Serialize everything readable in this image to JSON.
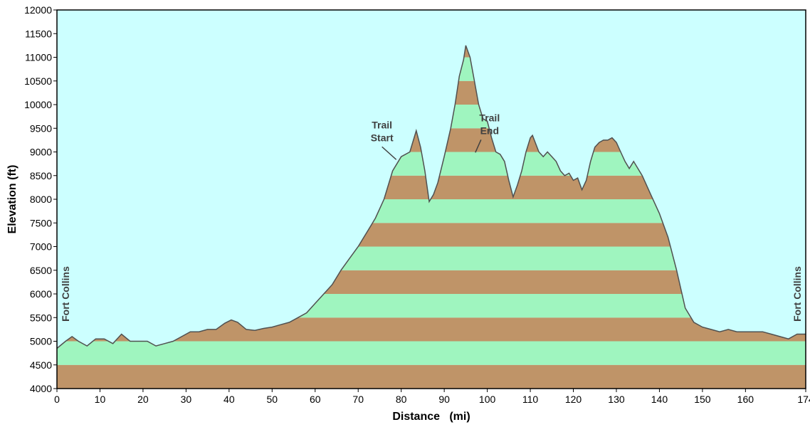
{
  "colors": {
    "sky": "#ccffff",
    "band_brown": "#bf9468",
    "band_green": "#9ff5bf",
    "profile_line": "#505050",
    "frame": "#000000",
    "annotation": "#404040"
  },
  "chart_data": {
    "type": "area",
    "xlabel": "Distance   (mi)",
    "ylabel": "Elevation (ft)",
    "xlim": [
      0,
      174
    ],
    "ylim": [
      4000,
      12000
    ],
    "x_ticks": [
      0,
      10,
      20,
      30,
      40,
      50,
      60,
      70,
      80,
      90,
      100,
      110,
      120,
      130,
      140,
      150,
      160,
      174
    ],
    "y_ticks": [
      4000,
      4500,
      5000,
      5500,
      6000,
      6500,
      7000,
      7500,
      8000,
      8500,
      9000,
      9500,
      10000,
      10500,
      11000,
      11500,
      12000
    ],
    "band_interval_ft": 500,
    "grid": false,
    "legend": "none",
    "series": [
      {
        "x": [
          0,
          2,
          3.5,
          5,
          7,
          9,
          11,
          13,
          15,
          17,
          19,
          21,
          23,
          25,
          27,
          29,
          31,
          33,
          35,
          37,
          39,
          40.5,
          42,
          44,
          46,
          48,
          50,
          52,
          54,
          56,
          58,
          60,
          62,
          64,
          66,
          68,
          70,
          72,
          74,
          76,
          78,
          80,
          82,
          83.5,
          84.5,
          85.5,
          86.5,
          87.5,
          88.5,
          90,
          91.5,
          92.5,
          93.5,
          94.5,
          95,
          96,
          97,
          98,
          99,
          100,
          101,
          102,
          103,
          104,
          105,
          106,
          107,
          108,
          109,
          110,
          110.5,
          112,
          113,
          114,
          115,
          116,
          117,
          118,
          119,
          120,
          121,
          122,
          123,
          124,
          125,
          126,
          127,
          128,
          129,
          130,
          131,
          132,
          133,
          134,
          135,
          136,
          138,
          140,
          142,
          144,
          146,
          148,
          150,
          152,
          154,
          156,
          158,
          160,
          162,
          164,
          166,
          168,
          170,
          172,
          174
        ],
        "y": [
          4850,
          5000,
          5100,
          5000,
          4900,
          5050,
          5050,
          4950,
          5150,
          5000,
          5000,
          5000,
          4900,
          4950,
          5000,
          5100,
          5200,
          5200,
          5250,
          5250,
          5380,
          5450,
          5400,
          5250,
          5230,
          5270,
          5300,
          5350,
          5400,
          5500,
          5600,
          5800,
          6000,
          6200,
          6500,
          6750,
          7000,
          7300,
          7600,
          8000,
          8600,
          8900,
          9000,
          9450,
          9100,
          8600,
          7950,
          8100,
          8350,
          8900,
          9500,
          10000,
          10600,
          10950,
          11250,
          11000,
          10500,
          10000,
          9700,
          9650,
          9300,
          9000,
          8950,
          8800,
          8400,
          8050,
          8300,
          8600,
          9000,
          9300,
          9350,
          9000,
          8900,
          9000,
          8900,
          8800,
          8600,
          8500,
          8550,
          8400,
          8450,
          8200,
          8400,
          8800,
          9100,
          9200,
          9250,
          9250,
          9300,
          9200,
          9000,
          8800,
          8650,
          8800,
          8650,
          8500,
          8100,
          7700,
          7200,
          6500,
          5700,
          5400,
          5300,
          5250,
          5200,
          5250,
          5200,
          5200,
          5200,
          5200,
          5150,
          5100,
          5050,
          5150,
          5150
        ]
      }
    ],
    "annotations": [
      {
        "lines": [
          "Trail",
          "Start"
        ],
        "x": 80,
        "y": 9500
      },
      {
        "lines": [
          "Trail",
          "End"
        ],
        "x": 105,
        "y": 9650
      },
      {
        "lines": [
          "Fort Collins"
        ],
        "x": 2,
        "y": 6000
      },
      {
        "lines": [
          "Fort Collins"
        ],
        "x": 172,
        "y": 6000
      }
    ]
  }
}
